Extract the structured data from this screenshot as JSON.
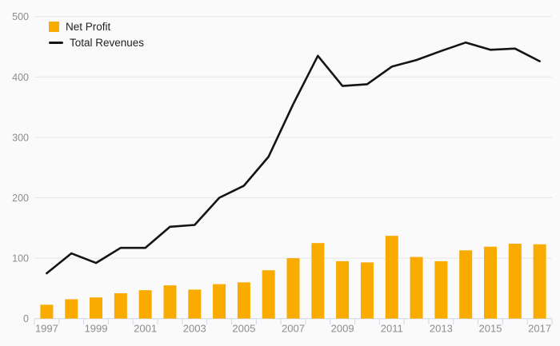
{
  "chart_data": {
    "type": "combo",
    "categories": [
      "1997",
      "1998",
      "1999",
      "2000",
      "2001",
      "2002",
      "2003",
      "2004",
      "2005",
      "2006",
      "2007",
      "2008",
      "2009",
      "2010",
      "2011",
      "2012",
      "2013",
      "2014",
      "2015",
      "2016",
      "2017"
    ],
    "series": [
      {
        "name": "Net Profit",
        "type": "bar",
        "color": "#F9AB00",
        "values": [
          23,
          32,
          35,
          42,
          47,
          55,
          48,
          57,
          60,
          80,
          100,
          125,
          95,
          93,
          137,
          102,
          95,
          113,
          119,
          124,
          123
        ]
      },
      {
        "name": "Total Revenues",
        "type": "line",
        "color": "#141414",
        "values": [
          75,
          108,
          92,
          117,
          117,
          152,
          155,
          200,
          220,
          268,
          355,
          435,
          385,
          388,
          417,
          428,
          443,
          457,
          445,
          447,
          426
        ]
      }
    ],
    "title": "",
    "xlabel": "",
    "ylabel": "",
    "ylim": [
      0,
      500
    ],
    "yticks": [
      0,
      100,
      200,
      300,
      400,
      500
    ],
    "xtick_labels_shown": [
      "1997",
      "1999",
      "2001",
      "2003",
      "2005",
      "2007",
      "2009",
      "2011",
      "2013",
      "2015",
      "2017"
    ],
    "x_label_every": 2,
    "grid": "horizontal",
    "legend_position": "top-left-inside"
  },
  "styles": {
    "background_color": "#fafafa",
    "grid_color": "#e6e6e6",
    "axis_color": "#ccd6eb",
    "tick_label_color": "#8c8c8c",
    "legend_text_color": "#222222",
    "bar_color": "#F9AB00",
    "line_color": "#141414"
  }
}
